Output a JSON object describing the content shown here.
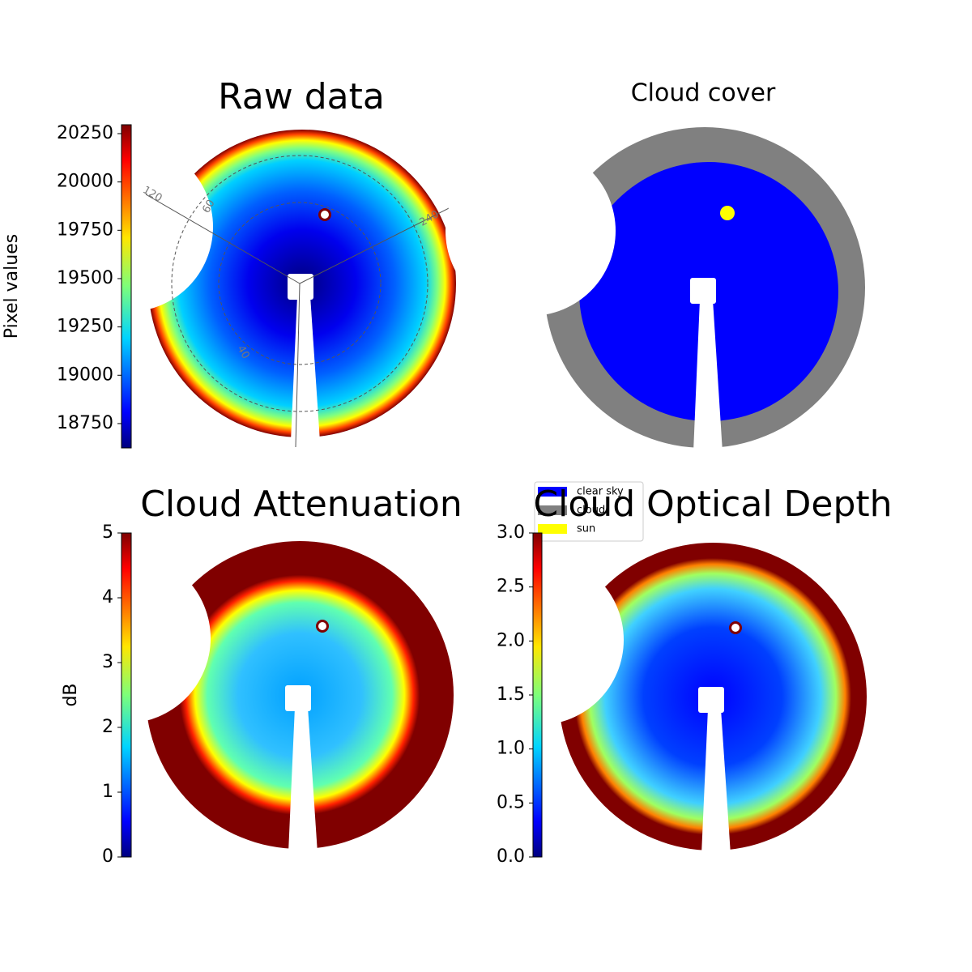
{
  "chart_data": [
    {
      "type": "image",
      "title": "Raw data",
      "ylabel": "Pixel values",
      "ylim": [
        18624,
        20296
      ],
      "yticks": [
        18750,
        19000,
        19250,
        19500,
        19750,
        20000,
        20250
      ],
      "polar_labels": [
        "120",
        "60",
        "240",
        "40"
      ]
    },
    {
      "type": "image",
      "title": "Cloud cover",
      "legend": [
        {
          "name": "clear sky",
          "color": "#0000ff"
        },
        {
          "name": "cloud",
          "color": "#808080"
        },
        {
          "name": "sun",
          "color": "#ffff00"
        }
      ]
    },
    {
      "type": "image",
      "title": "Cloud Attenuation",
      "ylabel": "dB",
      "ylim": [
        0,
        5
      ],
      "yticks": [
        0,
        1,
        2,
        3,
        4,
        5
      ]
    },
    {
      "type": "image",
      "title": "Cloud Optical Depth",
      "ylim": [
        0,
        3
      ],
      "yticks": [
        {
          "value": 0,
          "label": "0.0"
        },
        0.5,
        {
          "value": 1,
          "label": "1.0"
        },
        1.5,
        {
          "value": 2,
          "label": "2.0"
        },
        2.5,
        {
          "value": 3,
          "label": "3.0"
        }
      ]
    }
  ]
}
